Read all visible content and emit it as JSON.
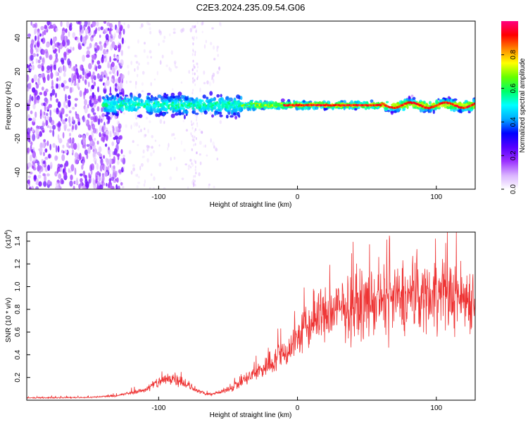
{
  "title": "C2E3.2024.235.09.54.G06",
  "chart_data": [
    {
      "type": "heatmap",
      "name": "spectrogram",
      "xlabel": "Height of straight line (km)",
      "ylabel": "Frequency (Hz)",
      "xlim": [
        -195,
        128
      ],
      "ylim": [
        -50,
        50
      ],
      "xticks": [
        -100,
        0,
        100
      ],
      "yticks": [
        -40,
        -20,
        0,
        20,
        40
      ],
      "colorbar": {
        "label": "Normalized spectral amplitude",
        "range": [
          0.0,
          1.0
        ],
        "ticks": [
          0.0,
          0.2,
          0.4,
          0.6,
          0.8
        ],
        "tick_labels": [
          "0.0",
          "0.2",
          "0.4",
          "0.6",
          "0.8"
        ],
        "colormap": [
          "#ffffff",
          "#d9b3ff",
          "#9b30ff",
          "#5500ff",
          "#0000ff",
          "#00aaff",
          "#00ffff",
          "#00ff66",
          "#66ff00",
          "#ffff00",
          "#ff8800",
          "#ff0000",
          "#ff0080"
        ]
      },
      "description_data": {
        "noise_region_x": [
          -195,
          -130
        ],
        "band_start_x": -140,
        "band_center_y": 0,
        "coherent_region_x": [
          -40,
          128
        ],
        "peak_amplitude": 1.0
      }
    },
    {
      "type": "line",
      "name": "snr",
      "xlabel": "Height of straight line (km)",
      "ylabel": "SNR (10 * v/v)",
      "multiplier_label": "(x10",
      "multiplier_exp": "4",
      "multiplier_close": ")",
      "xlim": [
        -195,
        128
      ],
      "ylim": [
        0,
        1.48
      ],
      "xticks": [
        -100,
        0,
        100
      ],
      "yticks": [
        0.2,
        0.4,
        0.6,
        0.8,
        1.0,
        1.2,
        1.4
      ],
      "ytick_labels": [
        "0.2",
        "0.4",
        "0.6",
        "0.8",
        "1.0",
        "1.2",
        "1.4"
      ],
      "color": "#ee3333",
      "envelope": {
        "x": [
          -195,
          -150,
          -130,
          -110,
          -100,
          -90,
          -85,
          -80,
          -75,
          -65,
          -55,
          -45,
          -35,
          -25,
          -15,
          -5,
          0,
          5,
          15,
          30,
          50,
          70,
          90,
          100,
          110,
          128
        ],
        "y": [
          0.02,
          0.025,
          0.04,
          0.09,
          0.16,
          0.2,
          0.18,
          0.14,
          0.1,
          0.05,
          0.07,
          0.13,
          0.2,
          0.28,
          0.37,
          0.46,
          0.55,
          0.62,
          0.72,
          0.8,
          0.85,
          0.88,
          0.92,
          0.95,
          0.92,
          0.9
        ]
      }
    }
  ]
}
